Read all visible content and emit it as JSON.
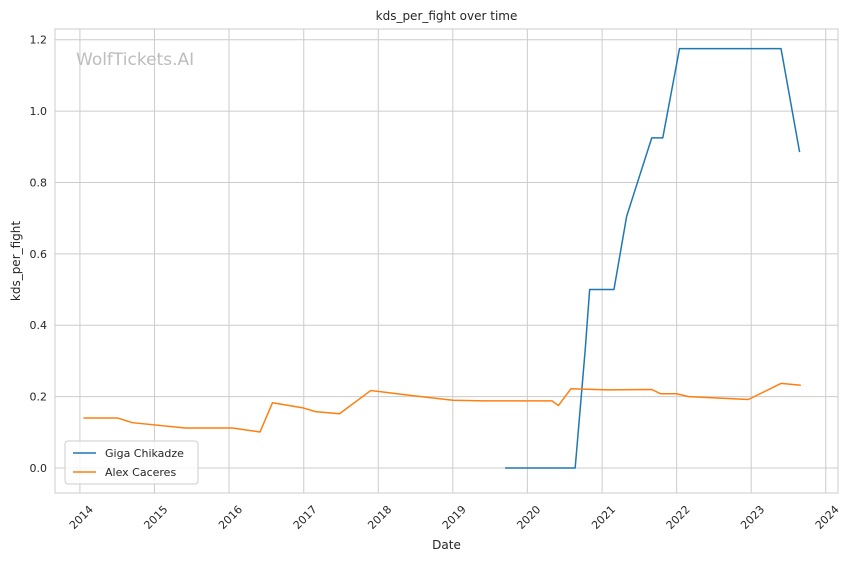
{
  "watermark": "WolfTickets.AI",
  "chart_data": {
    "type": "line",
    "title": "kds_per_fight over time",
    "xlabel": "Date",
    "ylabel": "kds_per_fight",
    "xlim": [
      "2013-09-01",
      "2024-03-01"
    ],
    "ylim": [
      -0.07,
      1.23
    ],
    "x_ticks": [
      "2014-01-01",
      "2015-01-01",
      "2016-01-01",
      "2017-01-01",
      "2018-01-01",
      "2019-01-01",
      "2020-01-01",
      "2021-01-01",
      "2022-01-01",
      "2023-01-01",
      "2024-01-01"
    ],
    "x_tick_labels": [
      "2014",
      "2015",
      "2016",
      "2017",
      "2018",
      "2019",
      "2020",
      "2021",
      "2022",
      "2023",
      "2024"
    ],
    "y_ticks": [
      0.0,
      0.2,
      0.4,
      0.6,
      0.8,
      1.0,
      1.2
    ],
    "y_tick_labels": [
      "0.0",
      "0.2",
      "0.4",
      "0.6",
      "0.8",
      "1.0",
      "1.2"
    ],
    "grid": true,
    "legend_position": "bottom-left",
    "series": [
      {
        "name": "Giga Chikadze",
        "color": "#1f77b4",
        "points": [
          [
            "2019-09-14",
            0.0
          ],
          [
            "2020-08-22",
            0.0
          ],
          [
            "2020-10-10",
            0.33
          ],
          [
            "2020-11-01",
            0.5
          ],
          [
            "2021-02-28",
            0.5
          ],
          [
            "2021-05-01",
            0.705
          ],
          [
            "2021-09-01",
            0.925
          ],
          [
            "2021-10-25",
            0.925
          ],
          [
            "2022-01-15",
            1.175
          ],
          [
            "2023-05-27",
            1.175
          ],
          [
            "2023-08-26",
            0.885
          ]
        ]
      },
      {
        "name": "Alex Caceres",
        "color": "#ff7f0e",
        "points": [
          [
            "2014-01-18",
            0.14
          ],
          [
            "2014-07-05",
            0.14
          ],
          [
            "2014-09-15",
            0.127
          ],
          [
            "2015-06-01",
            0.112
          ],
          [
            "2016-01-17",
            0.112
          ],
          [
            "2016-06-01",
            0.101
          ],
          [
            "2016-08-01",
            0.183
          ],
          [
            "2017-01-01",
            0.168
          ],
          [
            "2017-02-27",
            0.158
          ],
          [
            "2017-06-25",
            0.152
          ],
          [
            "2017-11-25",
            0.217
          ],
          [
            "2018-06-01",
            0.204
          ],
          [
            "2019-01-01",
            0.19
          ],
          [
            "2019-06-01",
            0.188
          ],
          [
            "2020-05-01",
            0.188
          ],
          [
            "2020-06-01",
            0.175
          ],
          [
            "2020-08-01",
            0.222
          ],
          [
            "2021-02-01",
            0.219
          ],
          [
            "2021-09-01",
            0.22
          ],
          [
            "2021-10-15",
            0.208
          ],
          [
            "2022-01-01",
            0.208
          ],
          [
            "2022-03-01",
            0.2
          ],
          [
            "2022-12-18",
            0.192
          ],
          [
            "2023-05-27",
            0.237
          ],
          [
            "2023-09-01",
            0.232
          ]
        ]
      }
    ]
  }
}
